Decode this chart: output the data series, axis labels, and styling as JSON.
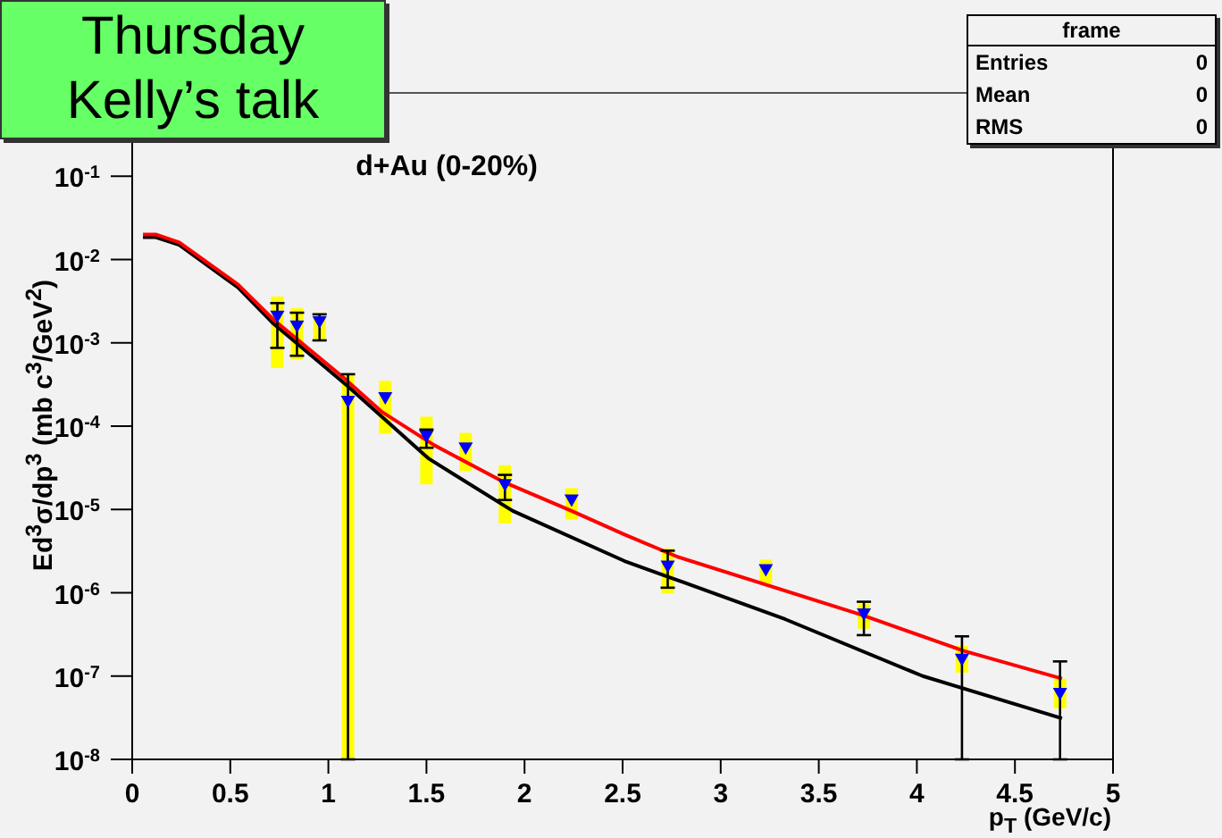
{
  "chart_data": {
    "type": "scatter",
    "title": "d+Au (0-20%)",
    "xlabel": "p$_{T}$ (GeV/c)",
    "ylabel": "Ed$^{3}$σ/dp$^{3}$ (mb c$^{3}$/GeV$^{2}$)",
    "annotations": [
      "Thursday",
      "Kelly’s talk",
      "frame",
      "Entries 0",
      "Mean 0",
      "RMS 0"
    ],
    "log": "y",
    "grid": false,
    "legend": false,
    "marker": "triangle",
    "xlim": [
      0,
      5
    ],
    "xticks": [
      0,
      0.5,
      1,
      1.5,
      2,
      2.5,
      3,
      3.5,
      4,
      4.5,
      5
    ],
    "ylim": [
      1e-08,
      1
    ],
    "yticks": [
      {
        "value": 1e-08,
        "label": "10$^{-8}$"
      },
      {
        "value": 1e-07,
        "label": "10$^{-7}$"
      },
      {
        "value": 1e-06,
        "label": "10$^{-6}$"
      },
      {
        "value": 1e-05,
        "label": "10$^{-5}$"
      },
      {
        "value": 0.0001,
        "label": "10$^{-4}$"
      },
      {
        "value": 0.001,
        "label": "10$^{-3}$"
      },
      {
        "value": 0.01,
        "label": "10$^{-2}$"
      },
      {
        "value": 0.1,
        "label": "10$^{-1}$"
      }
    ],
    "series": [
      {
        "type": "bar",
        "color": "#ffff00",
        "x": [
          0.74,
          0.84,
          0.955,
          1.1,
          1.29,
          1.5,
          1.7,
          1.9,
          2.24,
          2.73,
          3.23,
          3.73,
          4.23,
          4.73
        ],
        "base": [
          0.0005,
          0.00063,
          0.0011,
          1e-08,
          8.1e-05,
          2e-05,
          2.9e-05,
          6.8e-06,
          7.6e-06,
          9.8e-07,
          1.3e-06,
          3.7e-07,
          1.1e-07,
          4.1e-08
        ],
        "values": [
          0.0031,
          0.00197,
          0.0012,
          0.00042,
          0.000269,
          0.00011,
          5.4e-05,
          2.72e-05,
          1.04e-05,
          2.42e-06,
          1.2e-06,
          3.6e-07,
          1.2e-07,
          5.2e-08
        ]
      },
      {
        "type": "line",
        "marker": "none",
        "color": "#000000",
        "x": [
          0.055,
          0.12,
          0.24,
          0.54,
          0.72,
          1.1,
          1.51,
          1.94,
          2.51,
          2.75,
          3.33,
          4.03,
          4.74
        ],
        "values": [
          0.0185,
          0.0185,
          0.015,
          0.0046,
          0.0017,
          0.0003,
          4.1e-05,
          9.6e-06,
          2.4e-06,
          1.5e-06,
          4.8e-07,
          1e-07,
          3.1e-08
        ]
      },
      {
        "type": "line",
        "marker": "none",
        "color": "#ff0000",
        "x": [
          0.055,
          0.12,
          0.24,
          0.54,
          0.72,
          1.09,
          1.27,
          1.54,
          1.9,
          2.24,
          2.51,
          2.78,
          3.72,
          4.24,
          4.74
        ],
        "values": [
          0.02,
          0.02,
          0.016,
          0.005,
          0.0019,
          0.00036,
          0.00015,
          5.9e-05,
          2.1e-05,
          9.6e-06,
          5e-06,
          2.7e-06,
          5.4e-07,
          2e-07,
          9.3e-08
        ]
      },
      {
        "color": "#0000ff",
        "x": [
          0.74,
          0.84,
          0.955,
          1.1,
          1.29,
          1.5,
          1.7,
          1.9,
          2.24,
          2.73,
          3.23,
          3.73,
          4.23,
          4.73
        ],
        "values": [
          0.0021,
          0.0016,
          0.0018,
          0.0002,
          0.00022,
          7.6e-05,
          5.5e-05,
          2e-05,
          1.3e-05,
          2.1e-06,
          1.9e-06,
          5.6e-07,
          1.6e-07,
          6.2e-08
        ],
        "errors": [
          [
            0.00087,
            0.003
          ],
          [
            0.0007,
            0.0023
          ],
          [
            0.00107,
            0.0022
          ],
          [
            1e-08,
            0.00042
          ],
          null,
          [
            5.5e-05,
            9.1e-05
          ],
          null,
          [
            1.3e-05,
            2.6e-05
          ],
          null,
          [
            1.15e-06,
            3.2e-06
          ],
          null,
          [
            3.1e-07,
            7.8e-07
          ],
          [
            1e-08,
            3e-07
          ],
          [
            1e-08,
            1.5e-07
          ]
        ]
      }
    ]
  }
}
